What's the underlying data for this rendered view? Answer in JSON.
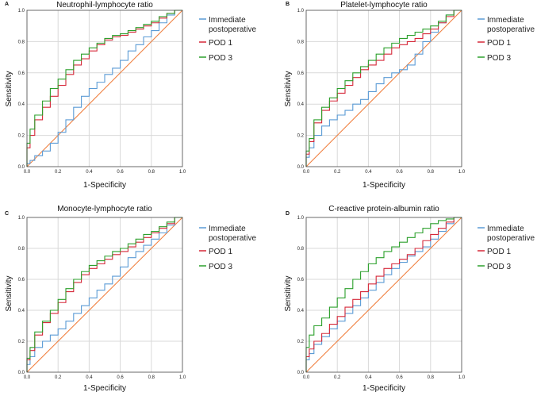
{
  "colors": {
    "immediate": "#5b9bd5",
    "pod1": "#d62839",
    "pod3": "#2ca02c",
    "reference": "#f08040",
    "grid": "#d9d9d9",
    "frame": "#444444"
  },
  "chart_data": [
    {
      "type": "line",
      "panel": "A",
      "title": "Neutrophil-lymphocyte ratio",
      "xlabel": "1-Specificity",
      "ylabel": "Sensitivity",
      "xlim": [
        0,
        1
      ],
      "ylim": [
        0,
        1
      ],
      "xticks": [
        "0.0",
        "0.2",
        "0.4",
        "0.6",
        "0.8",
        "1.0"
      ],
      "yticks": [
        "0.0",
        "0.2",
        "0.4",
        "0.6",
        "0.8",
        "1.0"
      ],
      "legend": [
        "Immediate",
        "postoperative",
        "POD 1",
        "POD 3"
      ],
      "series": [
        {
          "name": "Immediate postoperative",
          "color_key": "immediate",
          "x": [
            0,
            0.02,
            0.05,
            0.1,
            0.15,
            0.2,
            0.25,
            0.3,
            0.35,
            0.4,
            0.45,
            0.5,
            0.55,
            0.6,
            0.65,
            0.7,
            0.75,
            0.8,
            0.85,
            0.9,
            0.95,
            1
          ],
          "y": [
            0,
            0.02,
            0.04,
            0.07,
            0.1,
            0.15,
            0.22,
            0.3,
            0.38,
            0.45,
            0.5,
            0.54,
            0.59,
            0.63,
            0.68,
            0.74,
            0.78,
            0.83,
            0.87,
            0.92,
            0.97,
            1
          ]
        },
        {
          "name": "POD 1",
          "color_key": "pod1",
          "x": [
            0,
            0.02,
            0.05,
            0.1,
            0.15,
            0.2,
            0.25,
            0.3,
            0.35,
            0.4,
            0.45,
            0.5,
            0.55,
            0.6,
            0.65,
            0.7,
            0.75,
            0.8,
            0.85,
            0.9,
            0.95,
            1
          ],
          "y": [
            0,
            0.12,
            0.2,
            0.3,
            0.38,
            0.45,
            0.52,
            0.59,
            0.65,
            0.69,
            0.74,
            0.78,
            0.81,
            0.83,
            0.84,
            0.86,
            0.88,
            0.9,
            0.92,
            0.95,
            0.98,
            1
          ]
        },
        {
          "name": "POD 3",
          "color_key": "pod3",
          "x": [
            0,
            0.02,
            0.05,
            0.1,
            0.15,
            0.2,
            0.25,
            0.3,
            0.35,
            0.4,
            0.45,
            0.5,
            0.55,
            0.6,
            0.65,
            0.7,
            0.75,
            0.8,
            0.85,
            0.9,
            0.95,
            1
          ],
          "y": [
            0,
            0.15,
            0.24,
            0.33,
            0.42,
            0.5,
            0.56,
            0.62,
            0.68,
            0.72,
            0.76,
            0.79,
            0.82,
            0.84,
            0.85,
            0.87,
            0.89,
            0.91,
            0.93,
            0.96,
            0.98,
            1
          ]
        },
        {
          "name": "Reference",
          "color_key": "reference",
          "x": [
            0,
            1
          ],
          "y": [
            0,
            1
          ]
        }
      ]
    },
    {
      "type": "line",
      "panel": "B",
      "title": "Platelet-lymphocyte ratio",
      "xlabel": "1-Specificity",
      "ylabel": "Sensitivity",
      "xlim": [
        0,
        1
      ],
      "ylim": [
        0,
        1
      ],
      "xticks": [
        "0.0",
        "0.2",
        "0.4",
        "0.6",
        "0.8",
        "1.0"
      ],
      "yticks": [
        "0.0",
        "0.2",
        "0.4",
        "0.6",
        "0.8",
        "1.0"
      ],
      "legend": [
        "Immediate",
        "postoperative",
        "POD 1",
        "POD 3"
      ],
      "series": [
        {
          "name": "Immediate postoperative",
          "color_key": "immediate",
          "x": [
            0,
            0.02,
            0.05,
            0.1,
            0.15,
            0.2,
            0.25,
            0.3,
            0.35,
            0.4,
            0.45,
            0.5,
            0.55,
            0.6,
            0.65,
            0.7,
            0.75,
            0.8,
            0.85,
            0.9,
            0.95,
            1
          ],
          "y": [
            0,
            0.06,
            0.12,
            0.2,
            0.26,
            0.3,
            0.33,
            0.36,
            0.4,
            0.43,
            0.48,
            0.53,
            0.57,
            0.6,
            0.62,
            0.65,
            0.72,
            0.8,
            0.86,
            0.92,
            0.97,
            1
          ]
        },
        {
          "name": "POD 1",
          "color_key": "pod1",
          "x": [
            0,
            0.02,
            0.05,
            0.1,
            0.15,
            0.2,
            0.25,
            0.3,
            0.35,
            0.4,
            0.45,
            0.5,
            0.55,
            0.6,
            0.65,
            0.7,
            0.75,
            0.8,
            0.85,
            0.9,
            0.95,
            1
          ],
          "y": [
            0,
            0.08,
            0.16,
            0.28,
            0.36,
            0.42,
            0.47,
            0.52,
            0.57,
            0.62,
            0.65,
            0.68,
            0.72,
            0.76,
            0.78,
            0.8,
            0.82,
            0.85,
            0.88,
            0.92,
            0.96,
            1
          ]
        },
        {
          "name": "POD 3",
          "color_key": "pod3",
          "x": [
            0,
            0.02,
            0.05,
            0.1,
            0.15,
            0.2,
            0.25,
            0.3,
            0.35,
            0.4,
            0.45,
            0.5,
            0.55,
            0.6,
            0.65,
            0.7,
            0.75,
            0.8,
            0.85,
            0.9,
            0.95,
            1
          ],
          "y": [
            0,
            0.1,
            0.18,
            0.3,
            0.38,
            0.44,
            0.5,
            0.55,
            0.6,
            0.64,
            0.68,
            0.72,
            0.76,
            0.79,
            0.82,
            0.84,
            0.86,
            0.88,
            0.9,
            0.93,
            0.97,
            1
          ]
        },
        {
          "name": "Reference",
          "color_key": "reference",
          "x": [
            0,
            1
          ],
          "y": [
            0,
            1
          ]
        }
      ]
    },
    {
      "type": "line",
      "panel": "C",
      "title": "Monocyte-lymphocyte ratio",
      "xlabel": "1-Specificity",
      "ylabel": "Sensitivity",
      "xlim": [
        0,
        1
      ],
      "ylim": [
        0,
        1
      ],
      "xticks": [
        "0.0",
        "0.2",
        "0.4",
        "0.6",
        "0.8",
        "1.0"
      ],
      "yticks": [
        "0.0",
        "0.2",
        "0.4",
        "0.6",
        "0.8",
        "1.0"
      ],
      "legend": [
        "Immediate",
        "postoperative",
        "POD 1",
        "POD 3"
      ],
      "series": [
        {
          "name": "Immediate postoperative",
          "color_key": "immediate",
          "x": [
            0,
            0.02,
            0.05,
            0.1,
            0.15,
            0.2,
            0.25,
            0.3,
            0.35,
            0.4,
            0.45,
            0.5,
            0.55,
            0.6,
            0.65,
            0.7,
            0.75,
            0.8,
            0.85,
            0.9,
            0.95,
            1
          ],
          "y": [
            0,
            0.05,
            0.1,
            0.16,
            0.2,
            0.24,
            0.28,
            0.33,
            0.38,
            0.43,
            0.48,
            0.53,
            0.57,
            0.62,
            0.68,
            0.74,
            0.78,
            0.82,
            0.86,
            0.9,
            0.95,
            1
          ]
        },
        {
          "name": "POD 1",
          "color_key": "pod1",
          "x": [
            0,
            0.02,
            0.05,
            0.1,
            0.15,
            0.2,
            0.25,
            0.3,
            0.35,
            0.4,
            0.45,
            0.5,
            0.55,
            0.6,
            0.65,
            0.7,
            0.75,
            0.8,
            0.85,
            0.9,
            0.95,
            1
          ],
          "y": [
            0,
            0.08,
            0.14,
            0.24,
            0.32,
            0.38,
            0.45,
            0.52,
            0.58,
            0.63,
            0.67,
            0.7,
            0.73,
            0.76,
            0.78,
            0.81,
            0.84,
            0.87,
            0.9,
            0.93,
            0.96,
            1
          ]
        },
        {
          "name": "POD 3",
          "color_key": "pod3",
          "x": [
            0,
            0.02,
            0.05,
            0.1,
            0.15,
            0.2,
            0.25,
            0.3,
            0.35,
            0.4,
            0.45,
            0.5,
            0.55,
            0.6,
            0.65,
            0.7,
            0.75,
            0.8,
            0.85,
            0.9,
            0.95,
            1
          ],
          "y": [
            0,
            0.09,
            0.16,
            0.26,
            0.33,
            0.4,
            0.47,
            0.54,
            0.6,
            0.65,
            0.69,
            0.72,
            0.75,
            0.78,
            0.8,
            0.83,
            0.86,
            0.89,
            0.91,
            0.94,
            0.97,
            1
          ]
        },
        {
          "name": "Reference",
          "color_key": "reference",
          "x": [
            0,
            1
          ],
          "y": [
            0,
            1
          ]
        }
      ]
    },
    {
      "type": "line",
      "panel": "D",
      "title": "C-reactive protein-albumin ratio",
      "xlabel": "1-Specificity",
      "ylabel": "Sensitivity",
      "xlim": [
        0,
        1
      ],
      "ylim": [
        0,
        1
      ],
      "xticks": [
        "0.0",
        "0.2",
        "0.4",
        "0.6",
        "0.8",
        "1.0"
      ],
      "yticks": [
        "0.0",
        "0.2",
        "0.4",
        "0.6",
        "0.8",
        "1.0"
      ],
      "legend": [
        "Immediate",
        "postoperative",
        "POD 1",
        "POD 3"
      ],
      "series": [
        {
          "name": "Immediate postoperative",
          "color_key": "immediate",
          "x": [
            0,
            0.02,
            0.05,
            0.1,
            0.15,
            0.2,
            0.25,
            0.3,
            0.35,
            0.4,
            0.45,
            0.5,
            0.55,
            0.6,
            0.65,
            0.7,
            0.75,
            0.8,
            0.85,
            0.9,
            0.95,
            1
          ],
          "y": [
            0,
            0.08,
            0.12,
            0.18,
            0.23,
            0.28,
            0.33,
            0.38,
            0.43,
            0.48,
            0.53,
            0.58,
            0.63,
            0.67,
            0.71,
            0.75,
            0.78,
            0.81,
            0.86,
            0.91,
            0.96,
            1
          ]
        },
        {
          "name": "POD 1",
          "color_key": "pod1",
          "x": [
            0,
            0.02,
            0.05,
            0.1,
            0.15,
            0.2,
            0.25,
            0.3,
            0.35,
            0.4,
            0.45,
            0.5,
            0.55,
            0.6,
            0.65,
            0.7,
            0.75,
            0.8,
            0.85,
            0.9,
            0.95,
            1
          ],
          "y": [
            0,
            0.1,
            0.15,
            0.2,
            0.25,
            0.31,
            0.36,
            0.42,
            0.47,
            0.52,
            0.57,
            0.62,
            0.67,
            0.7,
            0.73,
            0.76,
            0.8,
            0.85,
            0.89,
            0.93,
            0.97,
            1
          ]
        },
        {
          "name": "POD 3",
          "color_key": "pod3",
          "x": [
            0,
            0.02,
            0.05,
            0.1,
            0.15,
            0.2,
            0.25,
            0.3,
            0.35,
            0.4,
            0.45,
            0.5,
            0.55,
            0.6,
            0.65,
            0.7,
            0.75,
            0.8,
            0.85,
            0.9,
            0.95,
            1
          ],
          "y": [
            0,
            0.16,
            0.24,
            0.3,
            0.35,
            0.42,
            0.48,
            0.54,
            0.6,
            0.65,
            0.7,
            0.74,
            0.78,
            0.81,
            0.84,
            0.87,
            0.9,
            0.93,
            0.96,
            0.98,
            0.99,
            1
          ]
        },
        {
          "name": "Reference",
          "color_key": "reference",
          "x": [
            0,
            1
          ],
          "y": [
            0,
            1
          ]
        }
      ]
    }
  ]
}
